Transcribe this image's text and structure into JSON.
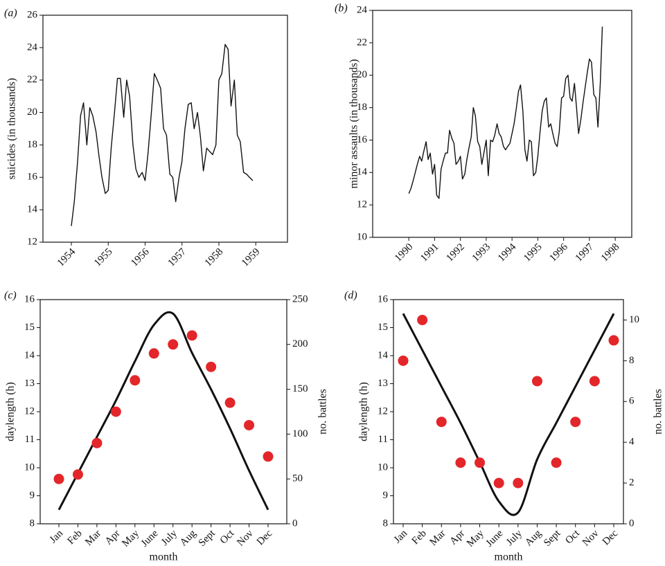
{
  "chart_data": [
    {
      "type": "line",
      "panel_label": "(a)",
      "ylabel": "suicides (in thousands)",
      "color": "#111111",
      "x": [
        1954,
        1954.08,
        1954.17,
        1954.25,
        1954.33,
        1954.42,
        1954.5,
        1954.58,
        1954.67,
        1954.75,
        1954.83,
        1954.92,
        1955,
        1955.08,
        1955.17,
        1955.25,
        1955.33,
        1955.42,
        1955.5,
        1955.58,
        1955.67,
        1955.75,
        1955.83,
        1955.92,
        1956,
        1956.08,
        1956.17,
        1956.25,
        1956.33,
        1956.42,
        1956.5,
        1956.58,
        1956.67,
        1956.75,
        1956.83,
        1956.92,
        1957,
        1957.08,
        1957.17,
        1957.25,
        1957.33,
        1957.42,
        1957.5,
        1957.58,
        1957.67,
        1957.75,
        1957.83,
        1957.92,
        1958,
        1958.08,
        1958.17,
        1958.25,
        1958.33,
        1958.42,
        1958.5,
        1958.58,
        1958.67,
        1958.75,
        1958.83,
        1958.92
      ],
      "values": [
        13.0,
        14.5,
        17.0,
        19.8,
        20.6,
        18.0,
        20.3,
        19.8,
        18.8,
        17.3,
        16.0,
        15.0,
        15.2,
        17.8,
        20.0,
        22.1,
        22.1,
        19.7,
        22.0,
        21.0,
        18.0,
        16.5,
        16.0,
        16.3,
        15.8,
        17.5,
        20.0,
        22.4,
        22.0,
        21.5,
        19.0,
        18.6,
        16.2,
        16.0,
        14.5,
        16.0,
        17.0,
        19.0,
        20.5,
        20.6,
        19.0,
        20.0,
        18.5,
        16.4,
        17.8,
        17.6,
        17.4,
        18.0,
        22.0,
        22.4,
        24.2,
        23.9,
        20.4,
        22.0,
        18.6,
        18.2,
        16.3,
        16.2,
        16.0,
        15.8
      ],
      "xlim": [
        1953.23,
        1959.86
      ],
      "xticks": [
        1954,
        1955,
        1956,
        1957,
        1958,
        1959
      ],
      "ylim": [
        12,
        26
      ],
      "yticks": [
        12,
        14,
        16,
        18,
        20,
        22,
        24,
        26
      ]
    },
    {
      "type": "line",
      "panel_label": "(b)",
      "ylabel": "minor assaults (in thousands)",
      "color": "#111111",
      "x": [
        1990,
        1990.08,
        1990.17,
        1990.25,
        1990.33,
        1990.42,
        1990.5,
        1990.58,
        1990.67,
        1990.75,
        1990.83,
        1990.92,
        1991,
        1991.08,
        1991.17,
        1991.25,
        1991.33,
        1991.42,
        1991.5,
        1991.58,
        1991.67,
        1991.75,
        1991.83,
        1991.92,
        1992,
        1992.08,
        1992.17,
        1992.25,
        1992.33,
        1992.42,
        1992.5,
        1992.58,
        1992.67,
        1992.75,
        1992.83,
        1992.92,
        1993,
        1993.08,
        1993.17,
        1993.25,
        1993.33,
        1993.42,
        1993.5,
        1993.58,
        1993.67,
        1993.75,
        1993.83,
        1993.92,
        1994,
        1994.08,
        1994.17,
        1994.25,
        1994.33,
        1994.42,
        1994.5,
        1994.58,
        1994.67,
        1994.75,
        1994.83,
        1994.92,
        1995,
        1995.08,
        1995.17,
        1995.25,
        1995.33,
        1995.42,
        1995.5,
        1995.58,
        1995.67,
        1995.75,
        1995.83,
        1995.92,
        1996,
        1996.08,
        1996.17,
        1996.25,
        1996.33,
        1996.42,
        1996.5,
        1996.58,
        1996.67,
        1996.75,
        1996.83,
        1996.92,
        1997,
        1997.08,
        1997.17,
        1997.25,
        1997.33,
        1997.42,
        1997.5
      ],
      "values": [
        12.7,
        13.0,
        13.5,
        14.0,
        14.5,
        15.0,
        14.7,
        15.3,
        15.9,
        14.8,
        15.2,
        13.9,
        14.5,
        12.6,
        12.4,
        14.2,
        14.7,
        15.2,
        15.2,
        16.6,
        16.1,
        15.8,
        14.5,
        14.7,
        15.0,
        13.6,
        13.9,
        14.8,
        15.5,
        16.2,
        18.0,
        17.5,
        15.9,
        15.6,
        14.5,
        15.3,
        16.0,
        13.8,
        16.0,
        15.9,
        16.3,
        17.0,
        16.4,
        16.2,
        15.6,
        15.4,
        15.6,
        15.8,
        16.4,
        17.0,
        18.0,
        19.0,
        19.4,
        17.8,
        15.4,
        14.7,
        16.0,
        15.9,
        13.8,
        14.0,
        15.0,
        16.4,
        17.8,
        18.4,
        18.6,
        16.8,
        17.0,
        16.4,
        15.8,
        15.6,
        16.5,
        18.6,
        18.7,
        19.8,
        20.0,
        18.6,
        18.4,
        19.5,
        18.0,
        16.4,
        17.3,
        18.3,
        19.2,
        20.2,
        21.0,
        20.8,
        18.8,
        18.6,
        16.8,
        19.5,
        23.0
      ],
      "xlim": [
        1988.6,
        1998.64
      ],
      "xticks": [
        1990,
        1991,
        1992,
        1993,
        1994,
        1995,
        1996,
        1997,
        1998
      ],
      "ylim": [
        10,
        24
      ],
      "yticks": [
        10,
        12,
        14,
        16,
        18,
        20,
        22,
        24
      ]
    },
    {
      "type": "line",
      "panel_label": "(c)",
      "ylabel": "daylength (h)",
      "y2label": "no. battles",
      "xlabel": "month",
      "smooth": true,
      "categories": [
        "Jan",
        "Feb",
        "Mar",
        "Apr",
        "May",
        "June",
        "July",
        "Aug",
        "Sept",
        "Oct",
        "Nov",
        "Dec"
      ],
      "series": [
        {
          "color": "#111111",
          "values": [
            8.5,
            9.8,
            11.1,
            12.4,
            13.8,
            15.1,
            15.5,
            14.1,
            12.8,
            11.4,
            9.9,
            8.5
          ]
        },
        {
          "type": "scatter",
          "axis": "y2",
          "color": "#e3262a",
          "values": [
            50,
            55,
            90,
            125,
            160,
            190,
            200,
            210,
            175,
            135,
            110,
            75
          ]
        }
      ],
      "ylim": [
        8,
        16
      ],
      "yticks": [
        8,
        9,
        10,
        11,
        12,
        13,
        14,
        15,
        16
      ],
      "y2lim": [
        0,
        250
      ],
      "y2ticks": [
        0,
        50,
        100,
        150,
        200,
        250
      ]
    },
    {
      "type": "line",
      "panel_label": "(d)",
      "ylabel": "daylength (h)",
      "y2label": "no. battles",
      "xlabel": "month",
      "smooth": true,
      "categories": [
        "Jan",
        "Feb",
        "Mar",
        "Apr",
        "May",
        "June",
        "July",
        "Aug",
        "Sept",
        "Oct",
        "Nov",
        "Dec"
      ],
      "series": [
        {
          "color": "#111111",
          "values": [
            15.5,
            14.2,
            12.9,
            11.6,
            10.2,
            8.8,
            8.4,
            10.3,
            11.6,
            12.9,
            14.2,
            15.5
          ]
        },
        {
          "type": "scatter",
          "axis": "y2",
          "color": "#e3262a",
          "values": [
            8,
            10,
            5,
            3,
            3,
            2,
            2,
            7,
            3,
            5,
            7,
            9
          ]
        }
      ],
      "ylim": [
        8,
        16
      ],
      "yticks": [
        8,
        9,
        10,
        11,
        12,
        13,
        14,
        15,
        16
      ],
      "y2lim": [
        0,
        11
      ],
      "y2ticks": [
        0,
        2,
        4,
        6,
        8,
        10
      ]
    }
  ]
}
